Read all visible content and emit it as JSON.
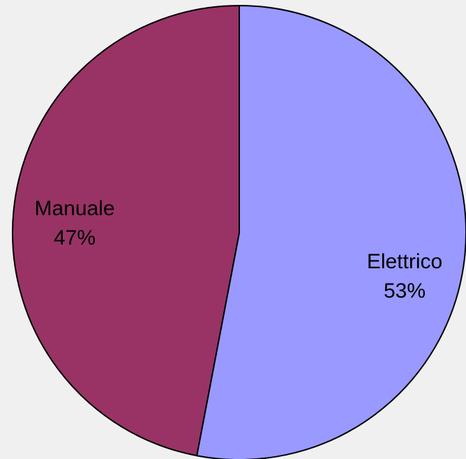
{
  "background": "#f0f0f0",
  "chart_data": {
    "type": "pie",
    "title": "",
    "start_direction": "top",
    "clockwise": true,
    "slices": [
      {
        "label": "Elettrico",
        "value": 53,
        "value_label": "53%",
        "color": "#9999ff"
      },
      {
        "label": "Manuale",
        "value": 47,
        "value_label": "47%",
        "color": "#993366"
      }
    ],
    "stroke_color": "#000000"
  }
}
